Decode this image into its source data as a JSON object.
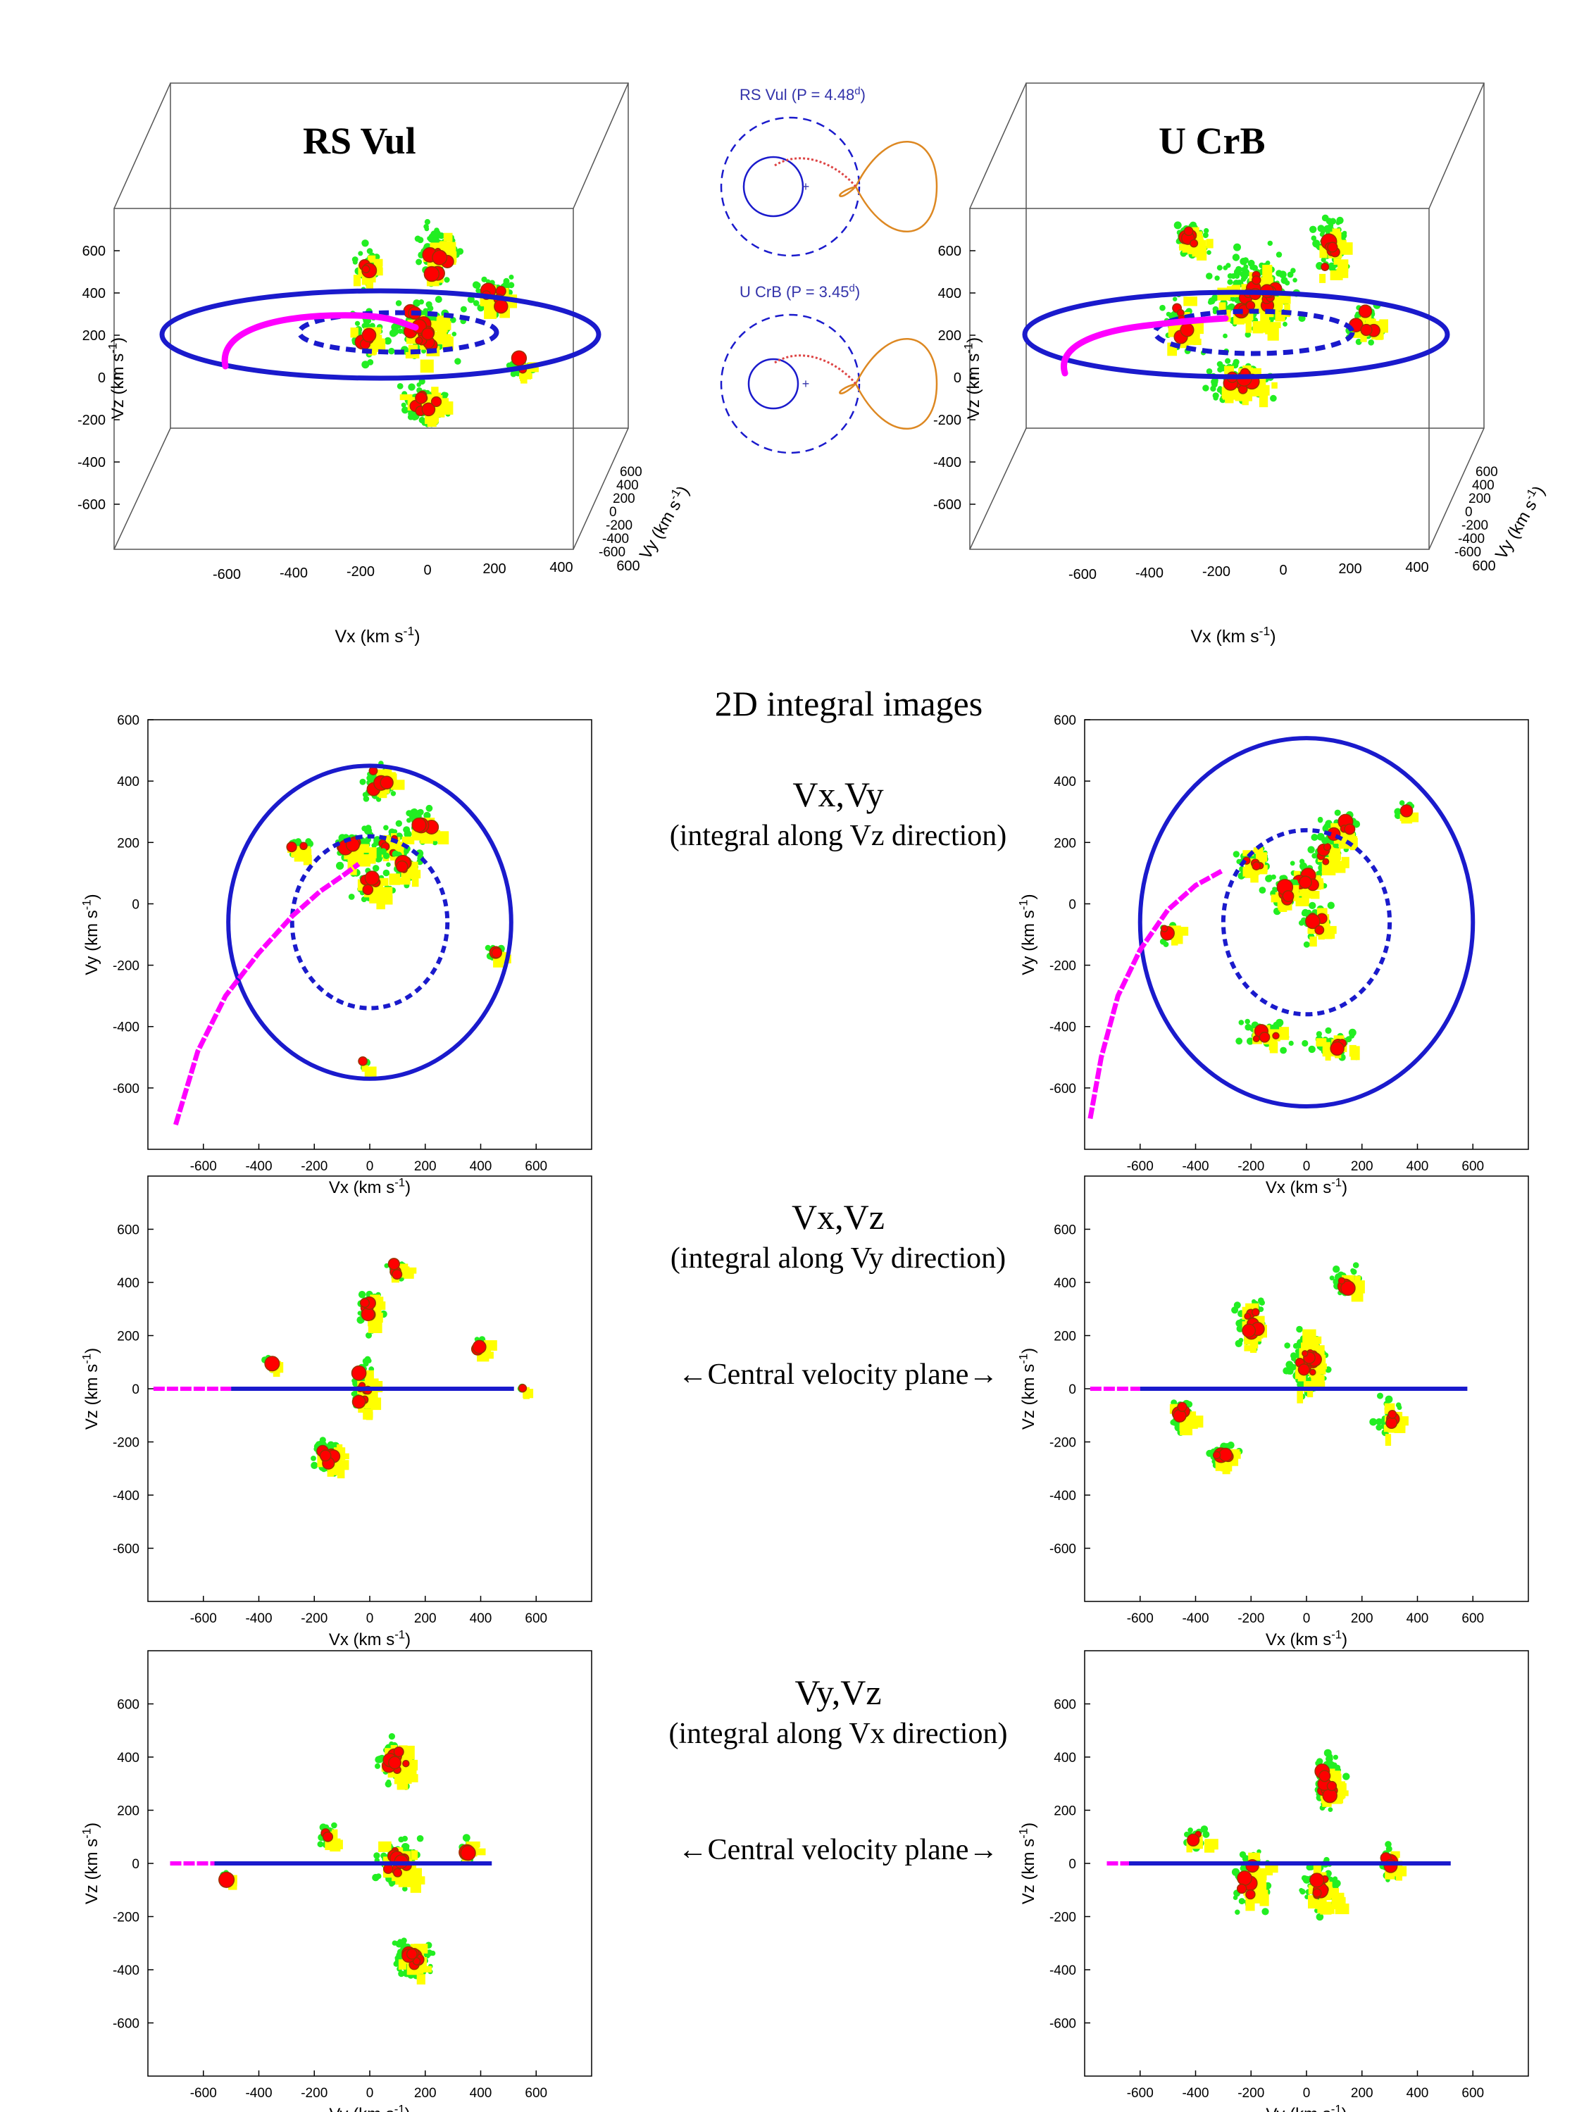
{
  "colors": {
    "blue": "#1a1acc",
    "magenta": "#ff00ff",
    "green": "#22ee22",
    "yellow": "#ffff00",
    "red": "#ff0000",
    "orange": "#dd8822",
    "frame": "#555555"
  },
  "top": {
    "left_label": "RS Vul",
    "right_label": "U CrB",
    "axis_x": "Vx (km s",
    "axis_y": "Vy (km s",
    "axis_z": "Vz (km s",
    "unit_sup": "-1",
    "unit_close": ")",
    "ticks_x": [
      "-600",
      "-400",
      "-200",
      "0",
      "200",
      "400",
      "600"
    ],
    "ticks_y": [
      "600",
      "400",
      "200",
      "0",
      "-200",
      "-400",
      "-600"
    ],
    "ticks_z": [
      "600",
      "400",
      "200",
      "0",
      "-200",
      "-400",
      "-600"
    ]
  },
  "schematic": {
    "rsvul_label": "RS Vul (P = 4.48",
    "ucrb_label": "U CrB (P = 3.45",
    "sup_d": "d",
    "close": ")"
  },
  "section_title": "2D integral images",
  "panels": [
    {
      "name": "vx-vy",
      "title": "Vx,Vy",
      "subtitle": "(integral along Vz direction)",
      "xlabel": "Vx (km s",
      "ylabel": "Vy (km s",
      "arrow_label": ""
    },
    {
      "name": "vx-vz",
      "title": "Vx,Vz",
      "subtitle": "(integral along Vy direction)",
      "xlabel": "Vx (km s",
      "ylabel": "Vz (km s",
      "arrow_label": "←Central velocity plane→"
    },
    {
      "name": "vy-vz",
      "title": "Vy,Vz",
      "subtitle": "(integral along Vx direction)",
      "xlabel": "Vy (km s",
      "ylabel": "Vz (km s",
      "arrow_label": "←Central velocity plane→"
    }
  ],
  "chart_data": [
    {
      "type": "scatter",
      "title": "RS Vul Vx,Vy",
      "xlabel": "Vx (km s-1)",
      "ylabel": "Vy (km s-1)",
      "xlim": [
        -800,
        800
      ],
      "ylim": [
        -800,
        600
      ],
      "x_ticks": [
        -600,
        -400,
        -200,
        0,
        200,
        400,
        600
      ],
      "y_ticks": [
        -600,
        -400,
        -200,
        0,
        200,
        400,
        600
      ],
      "series": [
        {
          "name": "outer orbit (solid)",
          "type": "circle",
          "center": [
            0,
            -60
          ],
          "r": 510
        },
        {
          "name": "inner orbit (dashed)",
          "type": "circle",
          "center": [
            0,
            -60
          ],
          "r": 280
        },
        {
          "name": "gas stream",
          "type": "line",
          "x": [
            -700,
            -620,
            -520,
            -400,
            -280,
            -180,
            -100,
            -40
          ],
          "y": [
            -720,
            -480,
            -300,
            -160,
            -40,
            40,
            90,
            130
          ]
        },
        {
          "name": "emission core",
          "type": "blob",
          "x": [
            60,
            120,
            0,
            180,
            -60,
            40
          ],
          "y": [
            200,
            120,
            60,
            260,
            180,
            400
          ]
        }
      ]
    },
    {
      "type": "scatter",
      "title": "U CrB Vx,Vy",
      "xlabel": "Vx (km s-1)",
      "ylabel": "Vy (km s-1)",
      "xlim": [
        -800,
        800
      ],
      "ylim": [
        -800,
        600
      ],
      "x_ticks": [
        -600,
        -400,
        -200,
        0,
        200,
        400,
        600
      ],
      "y_ticks": [
        -600,
        -400,
        -200,
        0,
        200,
        400,
        600
      ],
      "series": [
        {
          "name": "outer orbit (solid)",
          "type": "circle",
          "center": [
            0,
            -60
          ],
          "r": 600
        },
        {
          "name": "inner orbit (dashed)",
          "type": "circle",
          "center": [
            0,
            -60
          ],
          "r": 300
        },
        {
          "name": "gas stream",
          "type": "line",
          "x": [
            -780,
            -740,
            -680,
            -600,
            -500,
            -400,
            -300
          ],
          "y": [
            -700,
            -500,
            -300,
            -150,
            -20,
            60,
            110
          ]
        },
        {
          "name": "emission core",
          "type": "blob",
          "x": [
            0,
            80,
            -80,
            -200,
            40,
            120
          ],
          "y": [
            80,
            160,
            40,
            140,
            -60,
            240
          ]
        }
      ]
    },
    {
      "type": "scatter",
      "title": "RS Vul Vx,Vz",
      "xlabel": "Vx (km s-1)",
      "ylabel": "Vz (km s-1)",
      "xlim": [
        -800,
        800
      ],
      "ylim": [
        -800,
        800
      ],
      "x_ticks": [
        -600,
        -400,
        -200,
        0,
        200,
        400,
        600
      ],
      "y_ticks": [
        -600,
        -400,
        -200,
        0,
        200,
        400,
        600
      ],
      "central_plane": {
        "stream_x": [
          -780,
          -500
        ],
        "orbit_x": [
          -500,
          520
        ],
        "vz": 0
      }
    },
    {
      "type": "scatter",
      "title": "U CrB Vx,Vz",
      "xlabel": "Vx (km s-1)",
      "ylabel": "Vz (km s-1)",
      "xlim": [
        -800,
        800
      ],
      "ylim": [
        -800,
        800
      ],
      "x_ticks": [
        -600,
        -400,
        -200,
        0,
        200,
        400,
        600
      ],
      "y_ticks": [
        -600,
        -400,
        -200,
        0,
        200,
        400,
        600
      ],
      "central_plane": {
        "stream_x": [
          -780,
          -600
        ],
        "orbit_x": [
          -600,
          580
        ],
        "vz": 0
      }
    },
    {
      "type": "scatter",
      "title": "RS Vul Vy,Vz",
      "xlabel": "Vy (km s-1)",
      "ylabel": "Vz (km s-1)",
      "xlim": [
        -800,
        800
      ],
      "ylim": [
        -800,
        800
      ],
      "x_ticks": [
        -600,
        -400,
        -200,
        0,
        200,
        400,
        600
      ],
      "y_ticks": [
        -600,
        -400,
        -200,
        0,
        200,
        400,
        600
      ],
      "central_plane": {
        "stream_x": [
          -720,
          -560
        ],
        "orbit_x": [
          -560,
          440
        ],
        "vz": 0
      }
    },
    {
      "type": "scatter",
      "title": "U CrB Vy,Vz",
      "xlabel": "Vy (km s-1)",
      "ylabel": "Vz (km s-1)",
      "xlim": [
        -800,
        800
      ],
      "ylim": [
        -800,
        800
      ],
      "x_ticks": [
        -600,
        -400,
        -200,
        0,
        200,
        400,
        600
      ],
      "y_ticks": [
        -600,
        -400,
        -200,
        0,
        200,
        400,
        600
      ],
      "central_plane": {
        "stream_x": [
          -720,
          -640
        ],
        "orbit_x": [
          -640,
          520
        ],
        "vz": 0
      }
    }
  ]
}
